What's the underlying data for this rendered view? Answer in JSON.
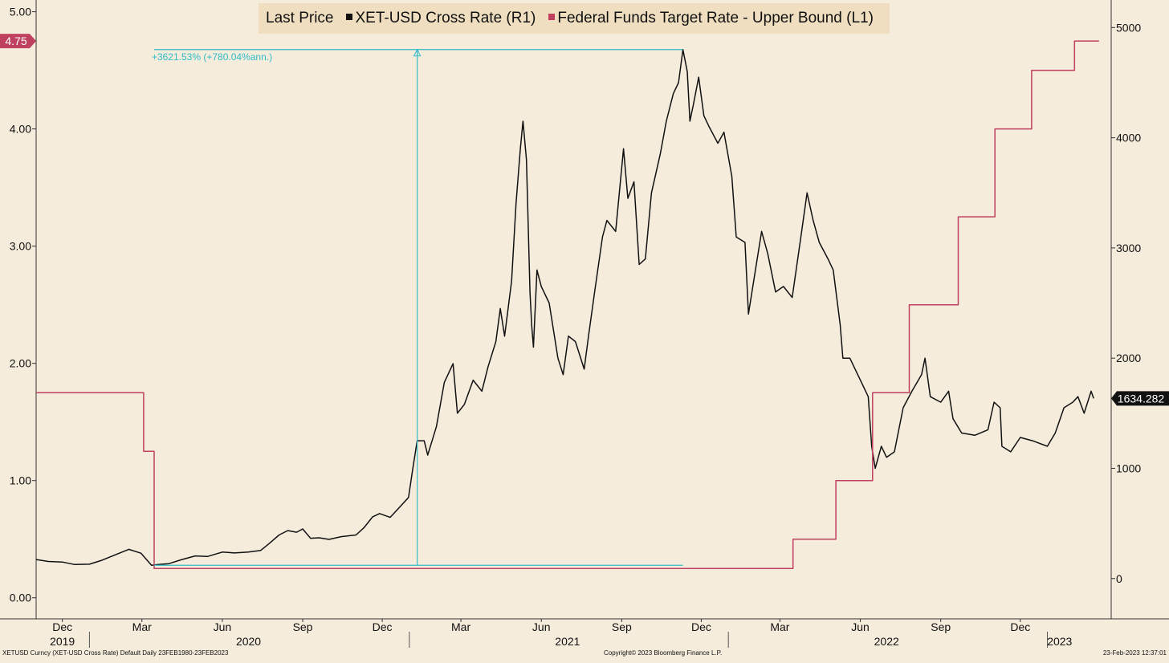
{
  "legend": {
    "title": "Last Price",
    "series1": "XET-USD Cross Rate  (R1)",
    "series2": "Federal Funds Target Rate - Upper Bound  (L1)"
  },
  "annotation": {
    "text": "+3621.53% (+780.04%ann.)"
  },
  "footer": {
    "left": "XETUSD Curncy (XET-USD Cross Rate) Default  Daily 23FEB1980-23FEB2023",
    "center": "Copyright© 2023 Bloomberg Finance L.P.",
    "right": "23-Feb-2023 12:37:01"
  },
  "colors": {
    "background": "#f5ecdc",
    "price": "#111111",
    "fedfunds": "#c0405f",
    "measure": "#2fbcc8",
    "legend_bg": "#efdfc0"
  },
  "chart_data": {
    "type": "line",
    "title": "Last Price",
    "x_axis": {
      "months": [
        {
          "label": "Dec",
          "date": "2019-12-01"
        },
        {
          "label": "Mar",
          "date": "2020-03-01"
        },
        {
          "label": "Jun",
          "date": "2020-06-01"
        },
        {
          "label": "Sep",
          "date": "2020-09-01"
        },
        {
          "label": "Dec",
          "date": "2020-12-01"
        },
        {
          "label": "Mar",
          "date": "2021-03-01"
        },
        {
          "label": "Jun",
          "date": "2021-06-01"
        },
        {
          "label": "Sep",
          "date": "2021-09-01"
        },
        {
          "label": "Dec",
          "date": "2021-12-01"
        },
        {
          "label": "Mar",
          "date": "2022-03-01"
        },
        {
          "label": "Jun",
          "date": "2022-06-01"
        },
        {
          "label": "Sep",
          "date": "2022-09-01"
        },
        {
          "label": "Dec",
          "date": "2022-12-01"
        }
      ],
      "years": [
        {
          "label": "2019",
          "date": "2019-12-01"
        },
        {
          "label": "2020",
          "date": "2020-07-01"
        },
        {
          "label": "2021",
          "date": "2021-07-01"
        },
        {
          "label": "2022",
          "date": "2022-07-01"
        },
        {
          "label": "2023",
          "date": "2023-01-15"
        }
      ],
      "year_dividers": [
        "2020-01-01",
        "2021-01-01",
        "2022-01-01",
        "2023-01-01"
      ],
      "range": [
        "2019-11-01",
        "2023-03-15"
      ]
    },
    "left_axis": {
      "ticks": [
        0,
        1,
        2,
        3,
        4,
        5
      ],
      "tick_labels": [
        "0.00",
        "1.00",
        "2.00",
        "3.00",
        "4.00",
        "5.00"
      ],
      "range": [
        -0.18,
        5.1
      ],
      "last_value_label": "4.75",
      "last_value": 4.75
    },
    "right_axis": {
      "ticks": [
        0,
        1000,
        2000,
        3000,
        4000,
        5000
      ],
      "tick_labels": [
        "0",
        "1000",
        "2000",
        "3000",
        "4000",
        "5000"
      ],
      "range": [
        -366,
        5250
      ],
      "last_value_label": "1634.282",
      "last_value": 1634.282
    },
    "grid": false,
    "legend_position": "top-center",
    "series": [
      {
        "name": "XET-USD Cross Rate  (R1)",
        "axis": "right",
        "color": "#111111",
        "points": [
          [
            "2019-11-01",
            172
          ],
          [
            "2019-11-15",
            155
          ],
          [
            "2019-12-01",
            150
          ],
          [
            "2019-12-15",
            127
          ],
          [
            "2020-01-01",
            130
          ],
          [
            "2020-01-15",
            165
          ],
          [
            "2020-02-01",
            220
          ],
          [
            "2020-02-15",
            265
          ],
          [
            "2020-02-29",
            230
          ],
          [
            "2020-03-12",
            120
          ],
          [
            "2020-03-20",
            128
          ],
          [
            "2020-04-01",
            135
          ],
          [
            "2020-04-15",
            170
          ],
          [
            "2020-05-01",
            205
          ],
          [
            "2020-05-15",
            200
          ],
          [
            "2020-06-01",
            240
          ],
          [
            "2020-06-15",
            232
          ],
          [
            "2020-07-01",
            240
          ],
          [
            "2020-07-15",
            255
          ],
          [
            "2020-07-25",
            320
          ],
          [
            "2020-08-05",
            395
          ],
          [
            "2020-08-15",
            435
          ],
          [
            "2020-08-25",
            420
          ],
          [
            "2020-09-01",
            450
          ],
          [
            "2020-09-10",
            365
          ],
          [
            "2020-09-20",
            370
          ],
          [
            "2020-10-01",
            355
          ],
          [
            "2020-10-15",
            380
          ],
          [
            "2020-11-01",
            395
          ],
          [
            "2020-11-10",
            460
          ],
          [
            "2020-11-20",
            560
          ],
          [
            "2020-11-28",
            590
          ],
          [
            "2020-12-10",
            555
          ],
          [
            "2020-12-20",
            640
          ],
          [
            "2020-12-31",
            735
          ],
          [
            "2021-01-05",
            1000
          ],
          [
            "2021-01-10",
            1250
          ],
          [
            "2021-01-18",
            1250
          ],
          [
            "2021-01-22",
            1120
          ],
          [
            "2021-02-01",
            1380
          ],
          [
            "2021-02-10",
            1780
          ],
          [
            "2021-02-20",
            1950
          ],
          [
            "2021-02-25",
            1500
          ],
          [
            "2021-03-05",
            1580
          ],
          [
            "2021-03-15",
            1800
          ],
          [
            "2021-03-25",
            1700
          ],
          [
            "2021-04-01",
            1920
          ],
          [
            "2021-04-10",
            2150
          ],
          [
            "2021-04-15",
            2450
          ],
          [
            "2021-04-20",
            2200
          ],
          [
            "2021-04-28",
            2700
          ],
          [
            "2021-05-03",
            3400
          ],
          [
            "2021-05-08",
            3900
          ],
          [
            "2021-05-11",
            4150
          ],
          [
            "2021-05-15",
            3800
          ],
          [
            "2021-05-19",
            2600
          ],
          [
            "2021-05-21",
            2300
          ],
          [
            "2021-05-23",
            2100
          ],
          [
            "2021-05-27",
            2800
          ],
          [
            "2021-06-01",
            2650
          ],
          [
            "2021-06-10",
            2500
          ],
          [
            "2021-06-20",
            2000
          ],
          [
            "2021-06-26",
            1850
          ],
          [
            "2021-07-02",
            2200
          ],
          [
            "2021-07-10",
            2150
          ],
          [
            "2021-07-20",
            1900
          ],
          [
            "2021-07-25",
            2200
          ],
          [
            "2021-08-01",
            2600
          ],
          [
            "2021-08-10",
            3100
          ],
          [
            "2021-08-15",
            3250
          ],
          [
            "2021-08-25",
            3150
          ],
          [
            "2021-09-03",
            3900
          ],
          [
            "2021-09-08",
            3450
          ],
          [
            "2021-09-15",
            3600
          ],
          [
            "2021-09-21",
            2850
          ],
          [
            "2021-09-28",
            2900
          ],
          [
            "2021-10-05",
            3500
          ],
          [
            "2021-10-15",
            3850
          ],
          [
            "2021-10-22",
            4150
          ],
          [
            "2021-10-30",
            4400
          ],
          [
            "2021-11-05",
            4500
          ],
          [
            "2021-11-10",
            4800
          ],
          [
            "2021-11-15",
            4600
          ],
          [
            "2021-11-18",
            4150
          ],
          [
            "2021-11-22",
            4300
          ],
          [
            "2021-11-28",
            4550
          ],
          [
            "2021-12-04",
            4200
          ],
          [
            "2021-12-10",
            4100
          ],
          [
            "2021-12-20",
            3950
          ],
          [
            "2021-12-27",
            4050
          ],
          [
            "2022-01-05",
            3650
          ],
          [
            "2022-01-10",
            3100
          ],
          [
            "2022-01-20",
            3050
          ],
          [
            "2022-01-24",
            2400
          ],
          [
            "2022-02-01",
            2800
          ],
          [
            "2022-02-08",
            3150
          ],
          [
            "2022-02-15",
            2950
          ],
          [
            "2022-02-24",
            2600
          ],
          [
            "2022-03-05",
            2650
          ],
          [
            "2022-03-15",
            2550
          ],
          [
            "2022-03-25",
            3100
          ],
          [
            "2022-04-01",
            3500
          ],
          [
            "2022-04-08",
            3250
          ],
          [
            "2022-04-15",
            3050
          ],
          [
            "2022-04-25",
            2900
          ],
          [
            "2022-05-01",
            2800
          ],
          [
            "2022-05-09",
            2300
          ],
          [
            "2022-05-12",
            2000
          ],
          [
            "2022-05-20",
            2000
          ],
          [
            "2022-06-01",
            1800
          ],
          [
            "2022-06-10",
            1650
          ],
          [
            "2022-06-14",
            1200
          ],
          [
            "2022-06-18",
            1000
          ],
          [
            "2022-06-25",
            1200
          ],
          [
            "2022-07-01",
            1100
          ],
          [
            "2022-07-10",
            1150
          ],
          [
            "2022-07-20",
            1550
          ],
          [
            "2022-07-30",
            1700
          ],
          [
            "2022-08-10",
            1850
          ],
          [
            "2022-08-14",
            2000
          ],
          [
            "2022-08-20",
            1650
          ],
          [
            "2022-09-01",
            1600
          ],
          [
            "2022-09-10",
            1700
          ],
          [
            "2022-09-15",
            1450
          ],
          [
            "2022-09-25",
            1320
          ],
          [
            "2022-10-10",
            1300
          ],
          [
            "2022-10-25",
            1350
          ],
          [
            "2022-11-01",
            1600
          ],
          [
            "2022-11-08",
            1550
          ],
          [
            "2022-11-10",
            1200
          ],
          [
            "2022-11-20",
            1150
          ],
          [
            "2022-12-01",
            1280
          ],
          [
            "2022-12-15",
            1250
          ],
          [
            "2023-01-01",
            1200
          ],
          [
            "2023-01-10",
            1320
          ],
          [
            "2023-01-20",
            1550
          ],
          [
            "2023-01-30",
            1600
          ],
          [
            "2023-02-05",
            1650
          ],
          [
            "2023-02-12",
            1500
          ],
          [
            "2023-02-20",
            1700
          ],
          [
            "2023-02-23",
            1634
          ]
        ]
      },
      {
        "name": "Federal Funds Target Rate - Upper Bound  (L1)",
        "axis": "left",
        "color": "#c0405f",
        "step": true,
        "points": [
          [
            "2019-11-01",
            1.75
          ],
          [
            "2020-03-03",
            1.25
          ],
          [
            "2020-03-15",
            0.25
          ],
          [
            "2022-03-16",
            0.5
          ],
          [
            "2022-05-04",
            1.0
          ],
          [
            "2022-06-15",
            1.75
          ],
          [
            "2022-07-27",
            2.5
          ],
          [
            "2022-09-21",
            3.25
          ],
          [
            "2022-11-02",
            4.0
          ],
          [
            "2022-12-14",
            4.5
          ],
          [
            "2023-02-01",
            4.75
          ],
          [
            "2023-03-01",
            4.75
          ]
        ]
      }
    ],
    "measurement": {
      "start": [
        "2020-03-15",
        120
      ],
      "end": [
        "2021-11-10",
        4800
      ],
      "label": "+3621.53% (+780.04%ann.)",
      "color": "#2fbcc8"
    }
  }
}
